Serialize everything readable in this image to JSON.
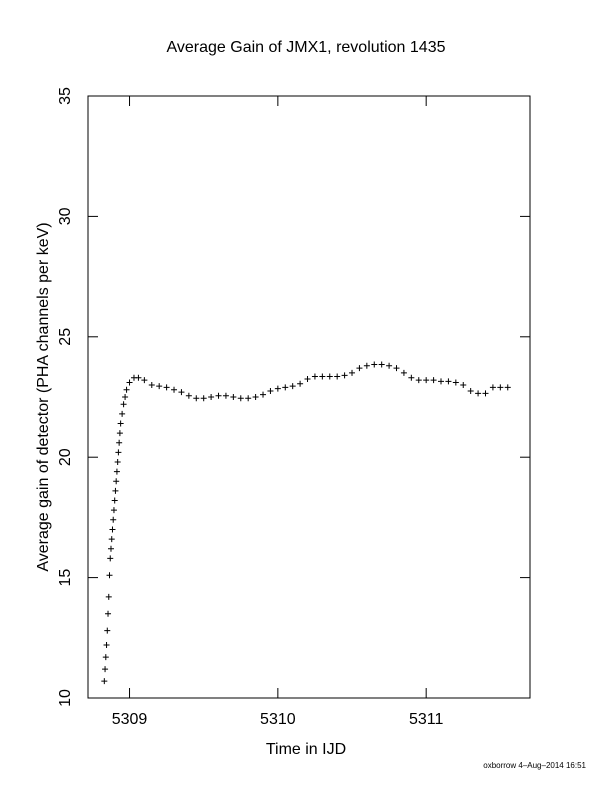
{
  "chart_data": {
    "type": "scatter",
    "title": "Average Gain of JMX1, revolution 1435",
    "xlabel": "Time in IJD",
    "ylabel": "Average gain of detector (PHA channels per keV)",
    "xlim": [
      5308.72,
      5311.7
    ],
    "ylim": [
      10,
      35
    ],
    "xticks": [
      5309,
      5310,
      5311
    ],
    "yticks": [
      10,
      15,
      20,
      25,
      30,
      35
    ],
    "marker": "plus",
    "grid": false,
    "legend": "none",
    "footer": "oxborrow 4–Aug–2014 16:51",
    "series": [
      {
        "points": [
          [
            5308.83,
            10.7
          ],
          [
            5308.835,
            11.2
          ],
          [
            5308.84,
            11.7
          ],
          [
            5308.845,
            12.2
          ],
          [
            5308.85,
            12.8
          ],
          [
            5308.855,
            13.5
          ],
          [
            5308.86,
            14.2
          ],
          [
            5308.865,
            15.1
          ],
          [
            5308.87,
            15.8
          ],
          [
            5308.875,
            16.2
          ],
          [
            5308.88,
            16.6
          ],
          [
            5308.885,
            17.0
          ],
          [
            5308.89,
            17.4
          ],
          [
            5308.895,
            17.8
          ],
          [
            5308.9,
            18.2
          ],
          [
            5308.905,
            18.6
          ],
          [
            5308.91,
            19.0
          ],
          [
            5308.915,
            19.4
          ],
          [
            5308.92,
            19.8
          ],
          [
            5308.925,
            20.2
          ],
          [
            5308.93,
            20.6
          ],
          [
            5308.935,
            21.0
          ],
          [
            5308.94,
            21.4
          ],
          [
            5308.95,
            21.8
          ],
          [
            5308.96,
            22.2
          ],
          [
            5308.97,
            22.5
          ],
          [
            5308.98,
            22.8
          ],
          [
            5309.0,
            23.1
          ],
          [
            5309.03,
            23.3
          ],
          [
            5309.06,
            23.3
          ],
          [
            5309.1,
            23.2
          ],
          [
            5309.15,
            23.0
          ],
          [
            5309.2,
            22.95
          ],
          [
            5309.25,
            22.9
          ],
          [
            5309.3,
            22.8
          ],
          [
            5309.35,
            22.7
          ],
          [
            5309.4,
            22.55
          ],
          [
            5309.45,
            22.45
          ],
          [
            5309.5,
            22.45
          ],
          [
            5309.55,
            22.5
          ],
          [
            5309.6,
            22.55
          ],
          [
            5309.65,
            22.55
          ],
          [
            5309.7,
            22.5
          ],
          [
            5309.75,
            22.45
          ],
          [
            5309.8,
            22.45
          ],
          [
            5309.85,
            22.5
          ],
          [
            5309.9,
            22.6
          ],
          [
            5309.95,
            22.75
          ],
          [
            5310.0,
            22.85
          ],
          [
            5310.05,
            22.9
          ],
          [
            5310.1,
            22.95
          ],
          [
            5310.15,
            23.05
          ],
          [
            5310.2,
            23.25
          ],
          [
            5310.25,
            23.35
          ],
          [
            5310.3,
            23.35
          ],
          [
            5310.35,
            23.35
          ],
          [
            5310.4,
            23.35
          ],
          [
            5310.45,
            23.4
          ],
          [
            5310.5,
            23.5
          ],
          [
            5310.55,
            23.7
          ],
          [
            5310.6,
            23.8
          ],
          [
            5310.65,
            23.85
          ],
          [
            5310.7,
            23.85
          ],
          [
            5310.75,
            23.8
          ],
          [
            5310.8,
            23.7
          ],
          [
            5310.85,
            23.5
          ],
          [
            5310.9,
            23.3
          ],
          [
            5310.95,
            23.2
          ],
          [
            5311.0,
            23.2
          ],
          [
            5311.05,
            23.2
          ],
          [
            5311.1,
            23.15
          ],
          [
            5311.15,
            23.15
          ],
          [
            5311.2,
            23.1
          ],
          [
            5311.25,
            23.0
          ],
          [
            5311.3,
            22.75
          ],
          [
            5311.35,
            22.65
          ],
          [
            5311.4,
            22.65
          ],
          [
            5311.45,
            22.9
          ],
          [
            5311.5,
            22.9
          ],
          [
            5311.55,
            22.9
          ]
        ]
      }
    ]
  }
}
